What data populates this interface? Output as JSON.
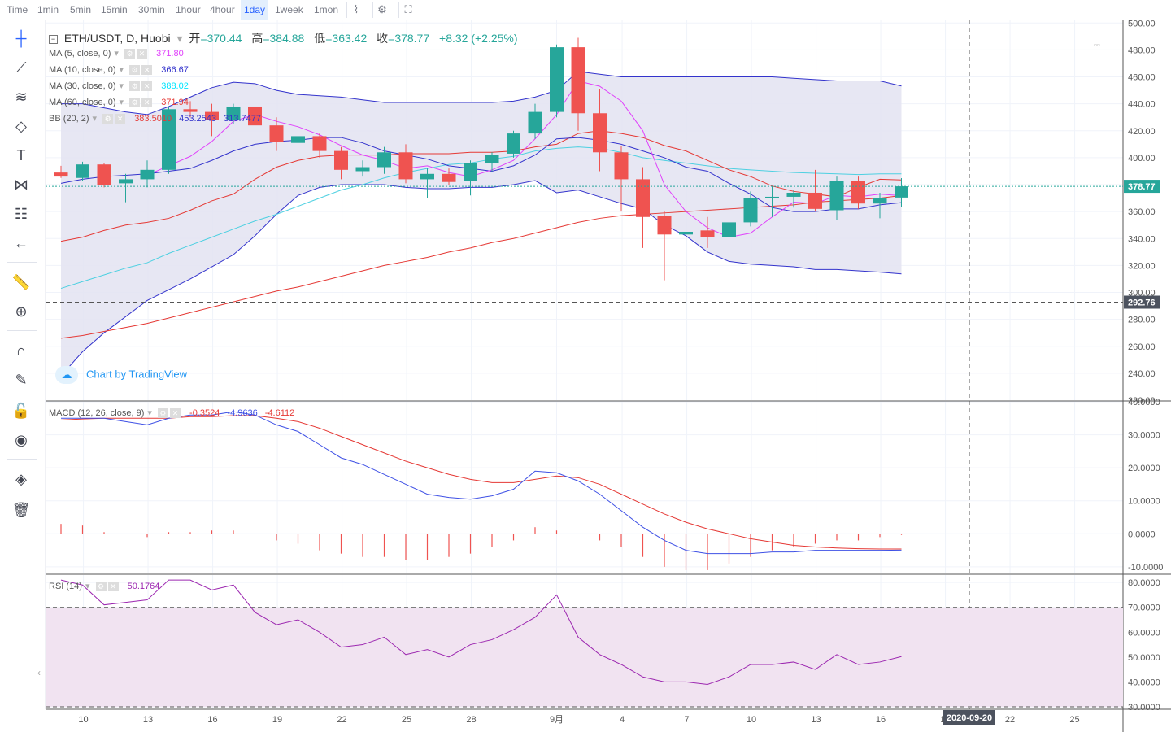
{
  "toolbar": {
    "timeframes": [
      "Time",
      "1min",
      "5min",
      "15min",
      "30min",
      "1hour",
      "4hour",
      "1day",
      "1week",
      "1mon"
    ],
    "active": "1day"
  },
  "header": {
    "symbol": "ETH/USDT, D, Huobi",
    "open_label": "开",
    "open": "370.44",
    "high_label": "高",
    "high": "384.88",
    "low_label": "低",
    "low": "363.42",
    "close_label": "收",
    "close": "378.77",
    "change": "+8.32 (+2.25%)"
  },
  "indicators": [
    {
      "label": "MA (5, close, 0)",
      "value": "371.80",
      "color": "#e040fb"
    },
    {
      "label": "MA (10, close, 0)",
      "value": "366.67",
      "color": "#3333cc"
    },
    {
      "label": "MA (30, close, 0)",
      "value": "388.02",
      "color": "#00e5ff"
    },
    {
      "label": "MA (60, close, 0)",
      "value": "371.94",
      "color": "#e53935"
    },
    {
      "label": "BB (20, 2)",
      "values": [
        "383.5010",
        "453.2543",
        "313.7477"
      ],
      "colors": [
        "#e53935",
        "#3333cc",
        "#3333cc"
      ]
    }
  ],
  "macd_legend": {
    "label": "MACD (12, 26, close, 9)",
    "values": [
      "-0.3524",
      "-4.9636",
      "-4.6112"
    ]
  },
  "rsi_legend": {
    "label": "RSI (14)",
    "value": "50.1764"
  },
  "watermark": "Chart by TradingView",
  "price_labels": {
    "last": "378.77",
    "crosshair": "292.76"
  },
  "crosshair_date": "2020-09-20",
  "colors": {
    "up": "#26a69a",
    "down": "#ef5350",
    "bb_fill": "#e3e3f1",
    "rsi_fill": "#f1e3f1",
    "rsi_line": "#9c27b0",
    "macd_line": "#3f51e5",
    "signal_line": "#e53935"
  },
  "chart_data": [
    {
      "type": "candlestick",
      "title": "ETH/USDT, D, Huobi",
      "x_ticks": [
        "10",
        "13",
        "16",
        "19",
        "22",
        "25",
        "28",
        "9月",
        "4",
        "7",
        "10",
        "13",
        "16",
        "19",
        "22",
        "25"
      ],
      "y_ticks": [
        "220.00",
        "240.00",
        "260.00",
        "280.00",
        "300.00",
        "320.00",
        "340.00",
        "360.00",
        "380.00",
        "400.00",
        "420.00",
        "440.00",
        "460.00",
        "480.00",
        "500.00"
      ],
      "ylim": [
        220,
        502
      ],
      "candles": [
        {
          "d": "08-09",
          "o": 389,
          "h": 394,
          "l": 385,
          "c": 386
        },
        {
          "d": "08-10",
          "o": 385,
          "h": 397,
          "l": 383,
          "c": 395
        },
        {
          "d": "08-11",
          "o": 395,
          "h": 396,
          "l": 378,
          "c": 380
        },
        {
          "d": "08-12",
          "o": 381,
          "h": 388,
          "l": 367,
          "c": 384
        },
        {
          "d": "08-13",
          "o": 384,
          "h": 398,
          "l": 378,
          "c": 391
        },
        {
          "d": "08-14",
          "o": 391,
          "h": 438,
          "l": 388,
          "c": 436
        },
        {
          "d": "08-15",
          "o": 436,
          "h": 442,
          "l": 430,
          "c": 434
        },
        {
          "d": "08-16",
          "o": 434,
          "h": 440,
          "l": 416,
          "c": 428
        },
        {
          "d": "08-17",
          "o": 428,
          "h": 440,
          "l": 425,
          "c": 438
        },
        {
          "d": "08-18",
          "o": 438,
          "h": 445,
          "l": 420,
          "c": 424
        },
        {
          "d": "08-19",
          "o": 424,
          "h": 430,
          "l": 405,
          "c": 412
        },
        {
          "d": "08-20",
          "o": 411,
          "h": 418,
          "l": 394,
          "c": 416
        },
        {
          "d": "08-21",
          "o": 416,
          "h": 418,
          "l": 400,
          "c": 405
        },
        {
          "d": "08-22",
          "o": 405,
          "h": 408,
          "l": 384,
          "c": 391
        },
        {
          "d": "08-23",
          "o": 390,
          "h": 398,
          "l": 386,
          "c": 393
        },
        {
          "d": "08-24",
          "o": 393,
          "h": 408,
          "l": 388,
          "c": 404
        },
        {
          "d": "08-25",
          "o": 404,
          "h": 410,
          "l": 381,
          "c": 384
        },
        {
          "d": "08-26",
          "o": 384,
          "h": 392,
          "l": 370,
          "c": 388
        },
        {
          "d": "08-27",
          "o": 388,
          "h": 392,
          "l": 380,
          "c": 382
        },
        {
          "d": "08-28",
          "o": 383,
          "h": 398,
          "l": 372,
          "c": 396
        },
        {
          "d": "08-29",
          "o": 396,
          "h": 404,
          "l": 390,
          "c": 402
        },
        {
          "d": "08-30",
          "o": 403,
          "h": 420,
          "l": 400,
          "c": 418
        },
        {
          "d": "08-31",
          "o": 418,
          "h": 440,
          "l": 414,
          "c": 434
        },
        {
          "d": "09-01",
          "o": 434,
          "h": 484,
          "l": 430,
          "c": 482
        },
        {
          "d": "09-02",
          "o": 482,
          "h": 489,
          "l": 420,
          "c": 433
        },
        {
          "d": "09-03",
          "o": 433,
          "h": 451,
          "l": 390,
          "c": 404
        },
        {
          "d": "09-04",
          "o": 404,
          "h": 409,
          "l": 360,
          "c": 384
        },
        {
          "d": "09-05",
          "o": 384,
          "h": 393,
          "l": 333,
          "c": 356
        },
        {
          "d": "09-06",
          "o": 357,
          "h": 360,
          "l": 309,
          "c": 343
        },
        {
          "d": "09-07",
          "o": 343,
          "h": 360,
          "l": 324,
          "c": 345
        },
        {
          "d": "09-08",
          "o": 346,
          "h": 356,
          "l": 333,
          "c": 341
        },
        {
          "d": "09-09",
          "o": 341,
          "h": 357,
          "l": 326,
          "c": 352
        },
        {
          "d": "09-10",
          "o": 352,
          "h": 375,
          "l": 349,
          "c": 370
        },
        {
          "d": "09-11",
          "o": 370,
          "h": 379,
          "l": 356,
          "c": 371
        },
        {
          "d": "09-12",
          "o": 371,
          "h": 376,
          "l": 363,
          "c": 374
        },
        {
          "d": "09-13",
          "o": 374,
          "h": 391,
          "l": 360,
          "c": 362
        },
        {
          "d": "09-14",
          "o": 361,
          "h": 386,
          "l": 354,
          "c": 383
        },
        {
          "d": "09-15",
          "o": 383,
          "h": 386,
          "l": 362,
          "c": 366
        },
        {
          "d": "09-16",
          "o": 366,
          "h": 374,
          "l": 355,
          "c": 370
        },
        {
          "d": "09-17",
          "o": 370.44,
          "h": 384.88,
          "l": 363.42,
          "c": 378.77
        }
      ],
      "ma5": [
        null,
        null,
        null,
        null,
        387,
        394,
        401,
        412,
        427,
        432,
        427,
        423,
        417,
        409,
        402,
        398,
        392,
        394,
        389,
        386,
        391,
        398,
        414,
        432,
        457,
        453,
        442,
        420,
        380,
        360,
        348,
        341,
        344,
        356,
        367,
        366,
        372,
        371,
        373,
        371.8
      ],
      "ma10": [
        381,
        384,
        386,
        387,
        388,
        390,
        392,
        398,
        405,
        410,
        412,
        413,
        415,
        415,
        411,
        405,
        402,
        399,
        394,
        392,
        390,
        394,
        402,
        414,
        415,
        413,
        410,
        405,
        400,
        393,
        390,
        381,
        373,
        363,
        360,
        360,
        362,
        362,
        365,
        366.67
      ],
      "ma30": [
        303,
        308,
        313,
        318,
        322,
        329,
        335,
        341,
        347,
        353,
        358,
        364,
        370,
        376,
        380,
        385,
        389,
        392,
        395,
        396,
        399,
        401,
        405,
        407,
        408,
        407,
        404,
        400,
        398,
        396,
        394,
        392,
        391,
        390,
        389,
        388.5,
        388,
        387.5,
        388,
        388.02
      ],
      "ma60": [
        266,
        268,
        271,
        274,
        277,
        281,
        285,
        289,
        293,
        297,
        301,
        304,
        308,
        312,
        316,
        320,
        323,
        326,
        330,
        333,
        337,
        340,
        344,
        348,
        352,
        355,
        357,
        358,
        359,
        360,
        361,
        362,
        363,
        364,
        365,
        367,
        368,
        369,
        370,
        371.94
      ],
      "bb_upper": [
        440,
        440,
        437,
        434,
        432,
        438,
        445,
        452,
        456,
        455,
        450,
        447,
        446,
        445,
        443,
        441,
        441,
        441,
        441,
        441,
        441,
        442,
        445,
        450,
        464,
        462,
        460,
        460,
        460,
        460,
        460,
        460,
        460,
        460,
        459,
        458,
        457,
        457,
        457,
        453.25
      ],
      "bb_lower": [
        238,
        256,
        270,
        282,
        294,
        302,
        310,
        319,
        328,
        342,
        358,
        372,
        378,
        380,
        380,
        380,
        378,
        377,
        377,
        378,
        378,
        380,
        383,
        374,
        376,
        371,
        366,
        362,
        350,
        342,
        330,
        323,
        321,
        320,
        319,
        317,
        317,
        316,
        315,
        313.75
      ],
      "bb_basis": [
        338,
        341,
        346,
        350,
        352,
        355,
        361,
        368,
        373,
        384,
        393,
        398,
        401,
        402,
        402,
        402,
        403,
        403,
        403,
        404,
        404,
        405,
        408,
        410,
        418,
        420,
        418,
        415,
        409,
        405,
        398,
        391,
        386,
        379,
        375,
        373,
        371,
        378,
        384,
        383.5
      ]
    },
    {
      "type": "line",
      "title": "MACD (12, 26, close, 9)",
      "y_ticks": [
        "-10.0000",
        "0.0000",
        "10.0000",
        "20.0000",
        "30.0000",
        "40.0000"
      ],
      "ylim": [
        -12,
        40
      ],
      "macd": [
        35,
        35,
        35,
        34,
        33,
        35,
        36,
        36,
        37,
        36,
        33,
        31,
        27,
        23,
        21,
        18,
        15,
        12,
        11,
        10.5,
        11.5,
        13.5,
        19,
        18.5,
        16,
        12,
        7,
        2,
        -2,
        -5,
        -6,
        -6,
        -6,
        -5.5,
        -5.5,
        -5,
        -5,
        -5,
        -5,
        -4.96
      ],
      "signal": [
        34.5,
        34.8,
        35,
        35,
        35,
        35,
        35.5,
        35.5,
        35.8,
        35.8,
        35,
        34,
        32,
        29.5,
        27,
        24.5,
        22,
        20,
        18,
        16.5,
        15.5,
        15.5,
        16.5,
        17.5,
        17,
        15,
        12,
        9,
        6,
        3.5,
        1.5,
        0,
        -1.5,
        -2.5,
        -3.5,
        -4,
        -4.3,
        -4.5,
        -4.6,
        -4.6
      ],
      "histogram": [
        3,
        2.5,
        0.5,
        0,
        -1,
        0.5,
        0.5,
        1,
        1,
        0,
        -2,
        -3,
        -5,
        -6,
        -7,
        -7,
        -8,
        -8,
        -7,
        -6,
        -4,
        -2,
        2,
        1,
        0,
        -2,
        -4,
        -7,
        -10,
        -11,
        -11,
        -9,
        -7,
        -5,
        -4,
        -3,
        -2,
        -2,
        -1,
        -0.35
      ]
    },
    {
      "type": "line",
      "title": "RSI (14)",
      "y_ticks": [
        "30.0000",
        "40.0000",
        "50.0000",
        "60.0000",
        "70.0000",
        "80.0000"
      ],
      "ylim": [
        29,
        83
      ],
      "bands": [
        30,
        70
      ],
      "rsi": [
        81,
        79,
        71,
        72,
        73,
        81,
        81,
        77,
        79,
        68,
        63,
        65,
        60,
        54,
        55,
        58,
        51,
        53,
        50,
        55,
        57,
        61,
        66,
        75,
        58,
        51,
        47,
        42,
        40,
        40,
        39,
        42,
        47,
        47,
        48,
        45,
        51,
        47,
        48,
        50.18
      ]
    }
  ]
}
